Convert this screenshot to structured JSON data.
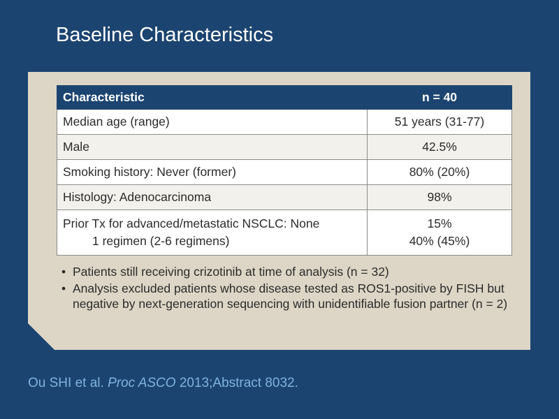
{
  "slide": {
    "title": "Baseline Characteristics"
  },
  "table": {
    "headers": [
      "Characteristic",
      "n = 40"
    ],
    "rows": [
      {
        "label": "Median age (range)",
        "value": "51 years (31-77)"
      },
      {
        "label": "Male",
        "value": "42.5%"
      },
      {
        "label": "Smoking history: Never (former)",
        "value": "80% (20%)"
      },
      {
        "label": "Histology: Adenocarcinoma",
        "value": "98%"
      },
      {
        "label": "Prior Tx for advanced/metastatic NSCLC: None",
        "label_line2": "1 regimen (2-6 regimens)",
        "value": "15%",
        "value_line2": "40% (45%)"
      }
    ]
  },
  "bullets": [
    "Patients still receiving crizotinib at time of analysis (n = 32)",
    "Analysis excluded patients whose disease tested as ROS1-positive by FISH but negative by next-generation sequencing with unidentifiable fusion partner (n = 2)"
  ],
  "bullet_glyph": "•",
  "citation": {
    "authors": "Ou SHI et al.",
    "journal": "Proc ASCO",
    "details": "2013;Abstract 8032."
  }
}
